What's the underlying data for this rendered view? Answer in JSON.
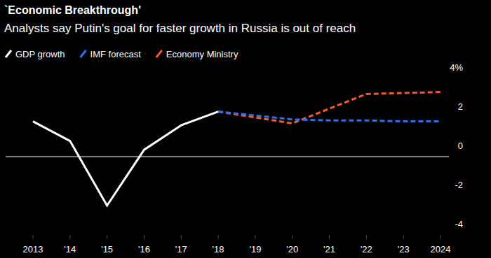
{
  "chart_data": {
    "type": "line",
    "title": "`Economic Breakthrough'",
    "subtitle": "Analysts say Putin's goal for faster growth in Russia is out of reach",
    "x": [
      2013,
      2014,
      2015,
      2016,
      2017,
      2018,
      2019,
      2020,
      2021,
      2022,
      2023,
      2024
    ],
    "xlim": [
      2013,
      2024
    ],
    "xticks": [
      2013,
      {
        "value": 2014,
        "label": "'14"
      },
      {
        "value": 2015,
        "label": "'15"
      },
      {
        "value": 2016,
        "label": "'16"
      },
      {
        "value": 2017,
        "label": "'17"
      },
      {
        "value": 2018,
        "label": "'18"
      },
      {
        "value": 2019,
        "label": "'19"
      },
      {
        "value": 2020,
        "label": "'20"
      },
      {
        "value": 2021,
        "label": "'21"
      },
      {
        "value": 2022,
        "label": "'22"
      },
      {
        "value": 2023,
        "label": "'23"
      },
      2024
    ],
    "ylim": [
      -4,
      4
    ],
    "yticks": [
      {
        "value": 4,
        "label": "4%"
      },
      2,
      0,
      -2,
      -4
    ],
    "grid": false,
    "legend": "top-left",
    "series": [
      {
        "name": "GDP growth",
        "color": "#ffffff",
        "line_style": "solid",
        "values": [
          1.8,
          0.8,
          -2.5,
          0.35,
          1.6,
          2.3,
          null,
          null,
          null,
          null,
          null,
          null
        ]
      },
      {
        "name": "IMF forecast",
        "color": "#2f6fe8",
        "line_style": "dashed",
        "values": [
          null,
          null,
          null,
          null,
          null,
          2.3,
          2.1,
          1.9,
          1.85,
          1.85,
          1.8,
          1.8
        ]
      },
      {
        "name": "Economy Ministry",
        "color": "#f25a2b",
        "line_style": "dashed",
        "values": [
          null,
          null,
          null,
          null,
          null,
          2.3,
          2.0,
          1.7,
          2.45,
          3.2,
          3.25,
          3.3
        ]
      }
    ]
  }
}
